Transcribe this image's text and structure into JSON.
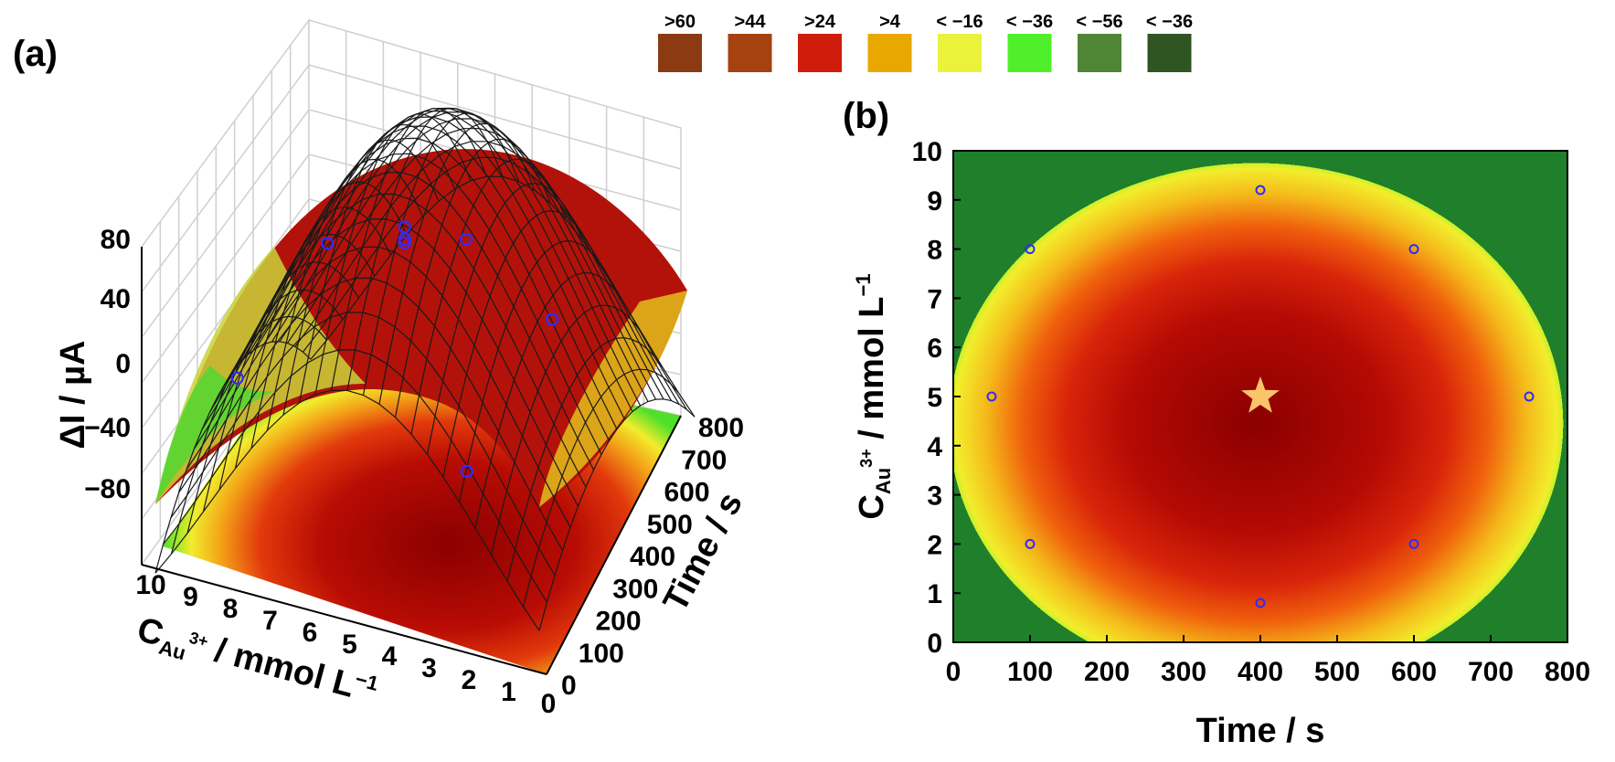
{
  "panel_a": {
    "label": "(a)"
  },
  "panel_b": {
    "label": "(b)"
  },
  "legend": {
    "items": [
      {
        "label": ">60",
        "color": "#8b3a12"
      },
      {
        "label": ">44",
        "color": "#a5420f"
      },
      {
        "label": ">24",
        "color": "#d01d0b"
      },
      {
        "label": ">4",
        "color": "#e8a800"
      },
      {
        "label": "< −16",
        "color": "#eaf23a"
      },
      {
        "label": "< −36",
        "color": "#4ff02a"
      },
      {
        "label": "< −56",
        "color": "#4f8636"
      },
      {
        "label": "< −36",
        "color": "#2f5523"
      }
    ]
  },
  "chart_data": [
    {
      "type": "surface",
      "zlabel": "ΔI / µA",
      "xlabel": "Time / s",
      "ylabel": "C",
      "ylabel_sub": "Au",
      "ylabel_sup": "3+",
      "ylabel_rest": " / mmol L",
      "ylabel_exp": "−1",
      "z_ticks": [
        "80",
        "40",
        "0",
        "−40",
        "−80"
      ],
      "time_ticks": [
        "0",
        "100",
        "200",
        "300",
        "400",
        "500",
        "600",
        "700",
        "800"
      ],
      "conc_ticks": [
        "10",
        "9",
        "8",
        "7",
        "6",
        "5",
        "4",
        "3",
        "2",
        "1",
        "0"
      ],
      "xlim": [
        0,
        800
      ],
      "ylim": [
        0,
        10
      ],
      "zlim": [
        -80,
        80
      ],
      "points": [
        {
          "time": 400,
          "conc": 5,
          "dI": 72
        },
        {
          "time": 400,
          "conc": 5,
          "dI": 66
        },
        {
          "time": 400,
          "conc": 5,
          "dI": 64
        },
        {
          "time": 100,
          "conc": 8,
          "dI": 22
        },
        {
          "time": 100,
          "conc": 2,
          "dI": 12
        },
        {
          "time": 600,
          "conc": 8,
          "dI": 20
        },
        {
          "time": 600,
          "conc": 2,
          "dI": 10
        },
        {
          "time": 750,
          "conc": 5,
          "dI": 14
        }
      ]
    },
    {
      "type": "contour",
      "xlabel": "Time / s",
      "ylabel": "C",
      "ylabel_sub": "Au",
      "ylabel_sup": "3+",
      "ylabel_rest": " / mmol L",
      "ylabel_exp": "−1",
      "x_ticks": [
        "0",
        "100",
        "200",
        "300",
        "400",
        "500",
        "600",
        "700",
        "800"
      ],
      "y_ticks": [
        "0",
        "1",
        "2",
        "3",
        "4",
        "5",
        "6",
        "7",
        "8",
        "9",
        "10"
      ],
      "xlim": [
        0,
        800
      ],
      "ylim": [
        0,
        10
      ],
      "optimum": {
        "time": 400,
        "conc": 5
      },
      "points": [
        {
          "time": 400,
          "conc": 9.2
        },
        {
          "time": 100,
          "conc": 8
        },
        {
          "time": 600,
          "conc": 8
        },
        {
          "time": 50,
          "conc": 5
        },
        {
          "time": 750,
          "conc": 5
        },
        {
          "time": 100,
          "conc": 2
        },
        {
          "time": 600,
          "conc": 2
        },
        {
          "time": 400,
          "conc": 0.8
        }
      ]
    }
  ]
}
